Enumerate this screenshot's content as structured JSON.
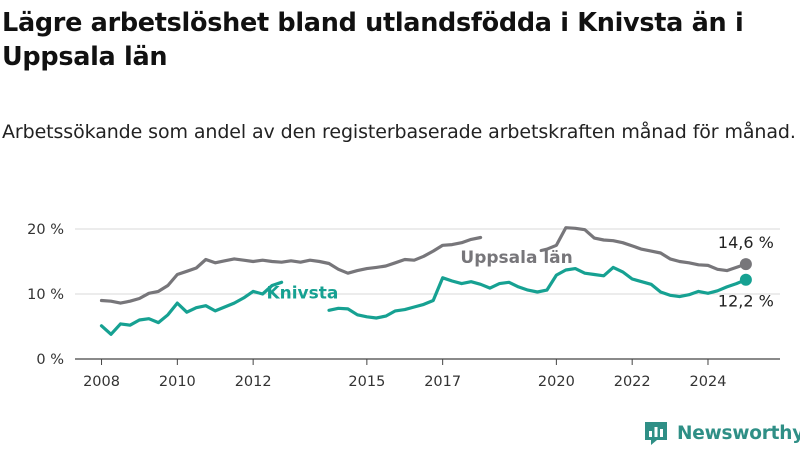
{
  "title": "Lägre arbetslöshet bland utlandsfödda i Knivsta än i Uppsala län",
  "subtitle": "Arbetssökande som andel av den registerbaserade arbetskraften månad för månad.",
  "brand": "Newsworthy",
  "colors": {
    "uppsala": "#77767a",
    "knivsta": "#16a192",
    "brand": "#2f8f86"
  },
  "chart_data": {
    "type": "line",
    "x_unit": "year",
    "xlim": [
      2007.3,
      2025.9
    ],
    "ylim": [
      0,
      20
    ],
    "y_ticks": [
      0,
      10,
      20
    ],
    "y_tick_labels": [
      "0 %",
      "10 %",
      "20 %"
    ],
    "x_ticks": [
      2008,
      2010,
      2012,
      2015,
      2017,
      2020,
      2022,
      2024
    ],
    "x_tick_labels": [
      "2008",
      "2010",
      "2012",
      "2015",
      "2017",
      "2020",
      "2022",
      "2024"
    ],
    "grid": "horizontal",
    "series": [
      {
        "name": "Uppsala län",
        "color": "#77767a",
        "end_label": "14,6 %",
        "points": [
          [
            2008.0,
            9.0
          ],
          [
            2008.25,
            8.9
          ],
          [
            2008.5,
            8.6
          ],
          [
            2008.75,
            8.9
          ],
          [
            2009.0,
            9.3
          ],
          [
            2009.25,
            10.1
          ],
          [
            2009.5,
            10.4
          ],
          [
            2009.75,
            11.3
          ],
          [
            2010.0,
            13.0
          ],
          [
            2010.25,
            13.5
          ],
          [
            2010.5,
            14.0
          ],
          [
            2010.75,
            15.3
          ],
          [
            2011.0,
            14.8
          ],
          [
            2011.25,
            15.1
          ],
          [
            2011.5,
            15.4
          ],
          [
            2011.75,
            15.2
          ],
          [
            2012.0,
            15.0
          ],
          [
            2012.25,
            15.2
          ],
          [
            2012.5,
            15.0
          ],
          [
            2012.75,
            14.9
          ],
          [
            2013.0,
            15.1
          ],
          [
            2013.25,
            14.9
          ],
          [
            2013.5,
            15.2
          ],
          [
            2013.75,
            15.0
          ],
          [
            2014.0,
            14.7
          ],
          [
            2014.25,
            13.8
          ],
          [
            2014.5,
            13.2
          ],
          [
            2014.75,
            13.6
          ],
          [
            2015.0,
            13.9
          ],
          [
            2015.25,
            14.1
          ],
          [
            2015.5,
            14.3
          ],
          [
            2015.75,
            14.8
          ],
          [
            2016.0,
            15.3
          ],
          [
            2016.25,
            15.2
          ],
          [
            2016.5,
            15.8
          ],
          [
            2016.75,
            16.6
          ],
          [
            2017.0,
            17.5
          ],
          [
            2017.25,
            17.6
          ],
          [
            2017.5,
            17.9
          ],
          [
            2017.75,
            18.4
          ],
          [
            2018.0,
            18.7
          ]
        ],
        "points_after_label": [
          [
            2019.6,
            16.7
          ],
          [
            2019.75,
            16.9
          ],
          [
            2020.0,
            17.5
          ],
          [
            2020.25,
            20.2
          ],
          [
            2020.5,
            20.1
          ],
          [
            2020.75,
            19.9
          ],
          [
            2021.0,
            18.6
          ],
          [
            2021.25,
            18.3
          ],
          [
            2021.5,
            18.2
          ],
          [
            2021.75,
            17.9
          ],
          [
            2022.0,
            17.4
          ],
          [
            2022.25,
            16.9
          ],
          [
            2022.5,
            16.6
          ],
          [
            2022.75,
            16.3
          ],
          [
            2023.0,
            15.4
          ],
          [
            2023.25,
            15.0
          ],
          [
            2023.5,
            14.8
          ],
          [
            2023.75,
            14.5
          ],
          [
            2024.0,
            14.4
          ],
          [
            2024.25,
            13.8
          ],
          [
            2024.5,
            13.6
          ],
          [
            2024.75,
            14.1
          ],
          [
            2025.0,
            14.6
          ]
        ],
        "hidden_range_approx": [
          [
            2018.25,
            18.0
          ],
          [
            2018.75,
            17.3
          ],
          [
            2019.25,
            17.0
          ]
        ]
      },
      {
        "name": "Knivsta",
        "color": "#16a192",
        "end_label": "12,2 %",
        "points": [
          [
            2008.0,
            5.1
          ],
          [
            2008.25,
            3.8
          ],
          [
            2008.5,
            5.4
          ],
          [
            2008.75,
            5.2
          ],
          [
            2009.0,
            6.0
          ],
          [
            2009.25,
            6.2
          ],
          [
            2009.5,
            5.6
          ],
          [
            2009.75,
            6.8
          ],
          [
            2010.0,
            8.6
          ],
          [
            2010.25,
            7.2
          ],
          [
            2010.5,
            7.9
          ],
          [
            2010.75,
            8.2
          ],
          [
            2011.0,
            7.4
          ],
          [
            2011.25,
            8.0
          ],
          [
            2011.5,
            8.6
          ],
          [
            2011.75,
            9.4
          ],
          [
            2012.0,
            10.4
          ],
          [
            2012.25,
            10.0
          ],
          [
            2012.5,
            11.3
          ],
          [
            2012.75,
            11.8
          ]
        ],
        "points_after_label": [
          [
            2014.0,
            7.5
          ],
          [
            2014.25,
            7.8
          ],
          [
            2014.5,
            7.7
          ],
          [
            2014.75,
            6.8
          ],
          [
            2015.0,
            6.5
          ],
          [
            2015.25,
            6.3
          ],
          [
            2015.5,
            6.6
          ],
          [
            2015.75,
            7.4
          ],
          [
            2016.0,
            7.6
          ],
          [
            2016.25,
            8.0
          ],
          [
            2016.5,
            8.4
          ],
          [
            2016.75,
            9.0
          ],
          [
            2017.0,
            12.5
          ],
          [
            2017.25,
            12.0
          ],
          [
            2017.5,
            11.6
          ],
          [
            2017.75,
            11.9
          ],
          [
            2018.0,
            11.5
          ],
          [
            2018.25,
            10.9
          ],
          [
            2018.5,
            11.6
          ],
          [
            2018.75,
            11.8
          ],
          [
            2019.0,
            11.1
          ],
          [
            2019.25,
            10.6
          ],
          [
            2019.5,
            10.3
          ],
          [
            2019.75,
            10.6
          ],
          [
            2020.0,
            12.9
          ],
          [
            2020.25,
            13.7
          ],
          [
            2020.5,
            13.9
          ],
          [
            2020.75,
            13.2
          ],
          [
            2021.0,
            13.0
          ],
          [
            2021.25,
            12.8
          ],
          [
            2021.5,
            14.1
          ],
          [
            2021.75,
            13.4
          ],
          [
            2022.0,
            12.3
          ],
          [
            2022.25,
            11.9
          ],
          [
            2022.5,
            11.5
          ],
          [
            2022.75,
            10.3
          ],
          [
            2023.0,
            9.8
          ],
          [
            2023.25,
            9.6
          ],
          [
            2023.5,
            9.9
          ],
          [
            2023.75,
            10.4
          ],
          [
            2024.0,
            10.1
          ],
          [
            2024.25,
            10.5
          ],
          [
            2024.5,
            11.1
          ],
          [
            2024.75,
            11.6
          ],
          [
            2025.0,
            12.2
          ]
        ]
      }
    ]
  }
}
